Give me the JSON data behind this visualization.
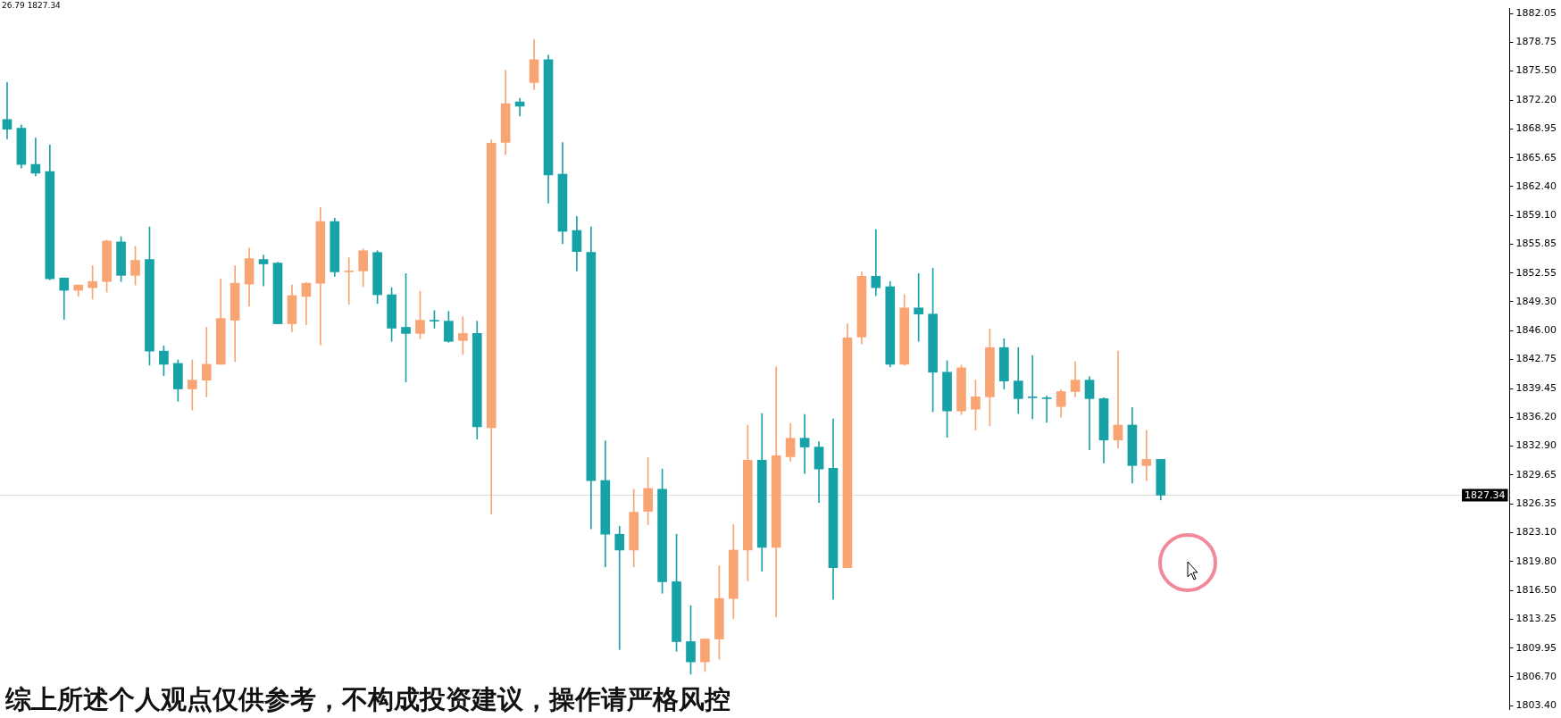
{
  "chart_data": {
    "type": "candlestick",
    "categories": [
      null,
      null,
      null,
      null,
      null,
      null,
      null,
      null,
      null,
      null,
      null,
      null,
      null,
      null,
      null,
      null,
      null,
      null,
      null,
      null,
      null,
      null,
      null,
      null,
      null,
      null,
      null,
      null,
      null,
      null,
      null,
      null,
      null,
      null,
      null,
      null,
      null,
      null,
      null,
      null,
      null,
      null,
      null,
      null,
      null,
      null,
      null,
      null,
      null,
      null,
      null,
      null,
      null,
      null,
      null,
      null,
      null,
      null,
      null,
      null,
      null,
      null,
      null,
      null,
      null,
      null,
      null,
      null,
      null,
      null,
      null,
      null,
      null,
      null,
      null,
      null,
      null,
      null,
      null,
      null,
      null,
      null,
      null,
      null,
      null,
      null,
      null,
      null,
      null,
      null,
      null,
      null,
      null,
      null,
      null,
      null,
      null,
      null,
      null,
      null,
      null,
      null,
      null,
      null,
      null,
      null
    ],
    "ohlc": [
      [
        1870.0,
        1874.2,
        1867.8,
        1868.9
      ],
      [
        1869.0,
        1869.4,
        1864.5,
        1864.9
      ],
      [
        1864.9,
        1867.9,
        1863.6,
        1863.9
      ],
      [
        1864.1,
        1867.1,
        1851.8,
        1851.9
      ],
      [
        1852.0,
        1852.0,
        1847.3,
        1850.6
      ],
      [
        1850.6,
        1851.2,
        1849.9,
        1851.2
      ],
      [
        1850.9,
        1853.4,
        1849.6,
        1851.6
      ],
      [
        1851.6,
        1856.3,
        1850.4,
        1856.2
      ],
      [
        1856.1,
        1856.7,
        1851.6,
        1852.3
      ],
      [
        1852.3,
        1855.6,
        1851.2,
        1854.0
      ],
      [
        1854.1,
        1857.8,
        1842.1,
        1843.7
      ],
      [
        1843.7,
        1844.3,
        1840.9,
        1842.2
      ],
      [
        1842.3,
        1842.7,
        1838.0,
        1839.4
      ],
      [
        1839.4,
        1842.7,
        1837.0,
        1840.4
      ],
      [
        1840.4,
        1846.4,
        1838.5,
        1842.2
      ],
      [
        1842.2,
        1851.9,
        1842.2,
        1847.4
      ],
      [
        1847.2,
        1853.4,
        1842.5,
        1851.4
      ],
      [
        1851.3,
        1855.4,
        1848.8,
        1854.2
      ],
      [
        1854.1,
        1854.6,
        1851.1,
        1853.6
      ],
      [
        1853.7,
        1853.8,
        1846.8,
        1846.8
      ],
      [
        1846.8,
        1851.2,
        1845.9,
        1850.0
      ],
      [
        1849.9,
        1851.5,
        1846.7,
        1851.4
      ],
      [
        1851.4,
        1860.0,
        1844.4,
        1858.4
      ],
      [
        1858.4,
        1858.8,
        1852.2,
        1852.7
      ],
      [
        1852.7,
        1854.3,
        1849.0,
        1852.8
      ],
      [
        1852.8,
        1855.3,
        1851.0,
        1855.1
      ],
      [
        1854.9,
        1855.1,
        1849.1,
        1850.1
      ],
      [
        1850.1,
        1850.9,
        1844.8,
        1846.3
      ],
      [
        1846.4,
        1852.5,
        1840.2,
        1845.7
      ],
      [
        1845.7,
        1850.5,
        1845.1,
        1847.2
      ],
      [
        1847.1,
        1848.3,
        1846.3,
        1847.1
      ],
      [
        1847.1,
        1848.2,
        1844.7,
        1844.8
      ],
      [
        1844.9,
        1847.6,
        1843.3,
        1845.7
      ],
      [
        1845.7,
        1847.1,
        1833.7,
        1835.1
      ],
      [
        1835.0,
        1867.7,
        1825.2,
        1867.3
      ],
      [
        1867.4,
        1875.6,
        1866.0,
        1871.8
      ],
      [
        1872.0,
        1872.4,
        1870.4,
        1871.5
      ],
      [
        1874.2,
        1879.1,
        1873.4,
        1876.8
      ],
      [
        1876.8,
        1877.3,
        1860.5,
        1863.7
      ],
      [
        1863.8,
        1867.4,
        1855.9,
        1857.3
      ],
      [
        1857.4,
        1859.0,
        1852.8,
        1855.0
      ],
      [
        1854.9,
        1857.8,
        1823.5,
        1829.0
      ],
      [
        1829.0,
        1833.5,
        1819.2,
        1822.9
      ],
      [
        1822.9,
        1823.8,
        1809.8,
        1821.1
      ],
      [
        1821.1,
        1828.0,
        1819.2,
        1825.4
      ],
      [
        1825.5,
        1831.6,
        1824.0,
        1828.1
      ],
      [
        1828.0,
        1830.3,
        1816.2,
        1817.5
      ],
      [
        1817.5,
        1822.9,
        1809.6,
        1810.7
      ],
      [
        1810.7,
        1814.8,
        1807.0,
        1808.4
      ],
      [
        1808.4,
        1811.0,
        1807.3,
        1811.0
      ],
      [
        1811.0,
        1819.3,
        1808.7,
        1815.6
      ],
      [
        1815.6,
        1824.0,
        1813.3,
        1821.1
      ],
      [
        1821.1,
        1835.3,
        1817.6,
        1831.3
      ],
      [
        1831.3,
        1836.6,
        1818.7,
        1821.4
      ],
      [
        1821.4,
        1841.9,
        1813.5,
        1831.8
      ],
      [
        1831.7,
        1835.5,
        1831.2,
        1833.8
      ],
      [
        1833.8,
        1836.5,
        1829.8,
        1832.8
      ],
      [
        1832.8,
        1833.4,
        1826.5,
        1830.3
      ],
      [
        1830.4,
        1836.0,
        1815.5,
        1819.1
      ],
      [
        1819.1,
        1846.8,
        1819.1,
        1845.2
      ],
      [
        1845.3,
        1852.7,
        1844.5,
        1852.2
      ],
      [
        1852.2,
        1857.5,
        1850.0,
        1850.9
      ],
      [
        1851.0,
        1851.6,
        1841.9,
        1842.2
      ],
      [
        1842.2,
        1850.1,
        1842.1,
        1848.6
      ],
      [
        1848.6,
        1852.5,
        1844.8,
        1847.9
      ],
      [
        1847.9,
        1853.1,
        1836.8,
        1841.3
      ],
      [
        1841.3,
        1842.6,
        1833.9,
        1836.9
      ],
      [
        1836.9,
        1842.1,
        1836.5,
        1841.8
      ],
      [
        1837.1,
        1840.4,
        1834.7,
        1838.5
      ],
      [
        1838.5,
        1846.2,
        1835.2,
        1844.1
      ],
      [
        1844.1,
        1845.1,
        1839.4,
        1840.3
      ],
      [
        1840.3,
        1844.1,
        1836.6,
        1838.3
      ],
      [
        1838.5,
        1843.2,
        1836.0,
        1838.4
      ],
      [
        1838.4,
        1838.6,
        1835.6,
        1838.3
      ],
      [
        1837.4,
        1839.3,
        1836.2,
        1839.1
      ],
      [
        1839.1,
        1842.5,
        1838.5,
        1840.4
      ],
      [
        1840.4,
        1840.8,
        1832.5,
        1838.3
      ],
      [
        1838.3,
        1838.4,
        1831.0,
        1833.6
      ],
      [
        1833.6,
        1843.7,
        1832.7,
        1835.3
      ],
      [
        1835.3,
        1837.3,
        1828.7,
        1830.7
      ],
      [
        1830.7,
        1834.7,
        1829.0,
        1831.4
      ],
      [
        1831.4,
        1831.4,
        1826.79,
        1827.34
      ],
      null,
      null,
      null,
      null,
      null,
      null,
      null,
      null,
      null,
      null,
      null,
      null,
      null,
      null,
      null,
      null,
      null,
      null,
      null,
      null,
      null,
      null,
      null,
      null
    ],
    "colors": [
      "#17a2a8",
      "#17a2a8",
      "#17a2a8",
      "#17a2a8",
      "#17a2a8",
      "#f9a573",
      "#f9a573",
      "#f9a573",
      "#17a2a8",
      "#f9a573",
      "#17a2a8",
      "#17a2a8",
      "#17a2a8",
      "#f9a573",
      "#f9a573",
      "#f9a573",
      "#f9a573",
      "#f9a573",
      "#17a2a8",
      "#17a2a8",
      "#f9a573",
      "#f9a573",
      "#f9a573",
      "#17a2a8",
      "#f9a573",
      "#f9a573",
      "#17a2a8",
      "#17a2a8",
      "#17a2a8",
      "#f9a573",
      "#17a2a8",
      "#17a2a8",
      "#f9a573",
      "#17a2a8",
      "#f9a573",
      "#f9a573",
      "#17a2a8",
      "#f9a573",
      "#17a2a8",
      "#17a2a8",
      "#17a2a8",
      "#17a2a8",
      "#17a2a8",
      "#17a2a8",
      "#f9a573",
      "#f9a573",
      "#17a2a8",
      "#17a2a8",
      "#17a2a8",
      "#f9a573",
      "#f9a573",
      "#f9a573",
      "#f9a573",
      "#17a2a8",
      "#f9a573",
      "#f9a573",
      "#17a2a8",
      "#17a2a8",
      "#17a2a8",
      "#f9a573",
      "#f9a573",
      "#17a2a8",
      "#17a2a8",
      "#f9a573",
      "#17a2a8",
      "#17a2a8",
      "#17a2a8",
      "#f9a573",
      "#f9a573",
      "#f9a573",
      "#17a2a8",
      "#17a2a8",
      "#17a2a8",
      "#17a2a8",
      "#f9a573",
      "#f9a573",
      "#17a2a8",
      "#17a2a8",
      "#f9a573",
      "#17a2a8",
      "#f9a573",
      "#17a2a8",
      null,
      null,
      null,
      null,
      null,
      null,
      null,
      null,
      null,
      null,
      null,
      null,
      null,
      null,
      null,
      null,
      null,
      null,
      null,
      null,
      null,
      null,
      null,
      null
    ],
    "ylim": [
      1803.0,
      1882.6
    ],
    "yticks": [
      {
        "value": 1803.4,
        "label": "1803.40"
      },
      {
        "value": 1806.7,
        "label": "1806.70"
      },
      1809.95,
      1813.25,
      {
        "value": 1816.5,
        "label": "1816.50"
      },
      {
        "value": 1819.8,
        "label": "1819.80"
      },
      {
        "value": 1823.1,
        "label": "1823.10"
      },
      1826.35,
      1829.65,
      {
        "value": 1832.9,
        "label": "1832.90"
      },
      {
        "value": 1836.2,
        "label": "1836.20"
      },
      1839.45,
      1842.75,
      {
        "value": 1846,
        "label": "1846.00"
      },
      {
        "value": 1849.3,
        "label": "1849.30"
      },
      1852.55,
      1855.85,
      {
        "value": 1859.1,
        "label": "1859.10"
      },
      {
        "value": 1862.4,
        "label": "1862.40"
      },
      1865.65,
      1868.95,
      {
        "value": 1872.2,
        "label": "1872.20"
      },
      {
        "value": 1875.5,
        "label": "1875.50"
      },
      1878.75,
      1882.05
    ],
    "tick_labels": "y",
    "ref_lines": [
      {
        "axis": "y",
        "value": 1827.34,
        "label": "1827.34",
        "color": "#dcdcdc"
      }
    ],
    "annotations": [
      "26.79 1827.34",
      "综上所述个人观点仅供参考，不构成投资建议，操作请严格风控"
    ]
  }
}
